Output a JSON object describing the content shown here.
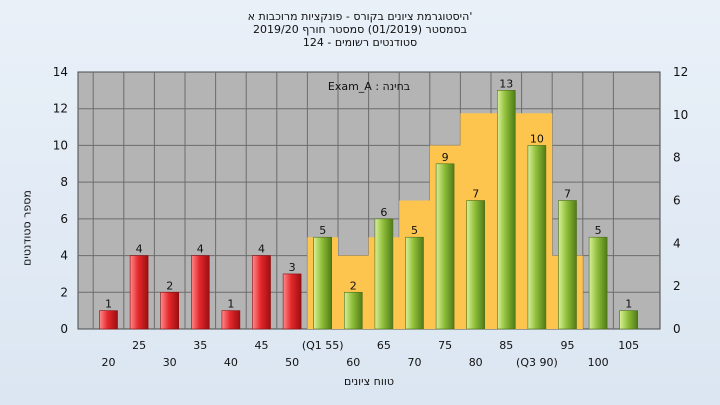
{
  "header": {
    "line1": "היסטוגרמת ציונים בקורס - פונקציות מרוכבות א'",
    "line2": "בסמסטר  (01/2019)  סמסטר חורף  2019/20",
    "line3": "סטודנטים רשומים - 124"
  },
  "chart_data": {
    "type": "bar",
    "annotation": "Exam_A : בחינה",
    "ylabel": "מספר סטודנטים",
    "xlabel": "טווח ציונים",
    "ylim": [
      0,
      14
    ],
    "y_ticks": [
      0,
      2,
      4,
      6,
      8,
      10,
      12,
      14
    ],
    "y2lim": [
      0,
      12
    ],
    "y2_ticks": [
      0,
      2,
      4,
      6,
      8,
      10,
      12
    ],
    "grid": true,
    "categories": [
      "20",
      "25",
      "30",
      "35",
      "40",
      "45",
      "50",
      "55",
      "60",
      "65",
      "70",
      "75",
      "80",
      "85",
      "90",
      "95",
      "100",
      "105"
    ],
    "category_labels": [
      "20",
      "25",
      "30",
      "35",
      "40",
      "45",
      "50",
      "(Q1 55)",
      "60",
      "65",
      "70",
      "75",
      "80",
      "85",
      "(Q3 90)",
      "95",
      "100",
      "105"
    ],
    "values": [
      1,
      4,
      2,
      4,
      1,
      4,
      3,
      5,
      2,
      6,
      5,
      9,
      7,
      13,
      10,
      7,
      5,
      1
    ],
    "bar_colors": {
      "failing": "#e4282c",
      "passing": "#8fbf3a"
    },
    "failing_categories": [
      "20",
      "25",
      "30",
      "35",
      "40",
      "45",
      "50"
    ],
    "area": {
      "color": "#fdc54e",
      "x": [
        "55",
        "60",
        "65",
        "70",
        "75",
        "80",
        "85",
        "90",
        "95"
      ],
      "values": [
        5,
        4,
        5,
        7,
        10,
        11.75,
        11.75,
        11.75,
        4
      ]
    }
  }
}
